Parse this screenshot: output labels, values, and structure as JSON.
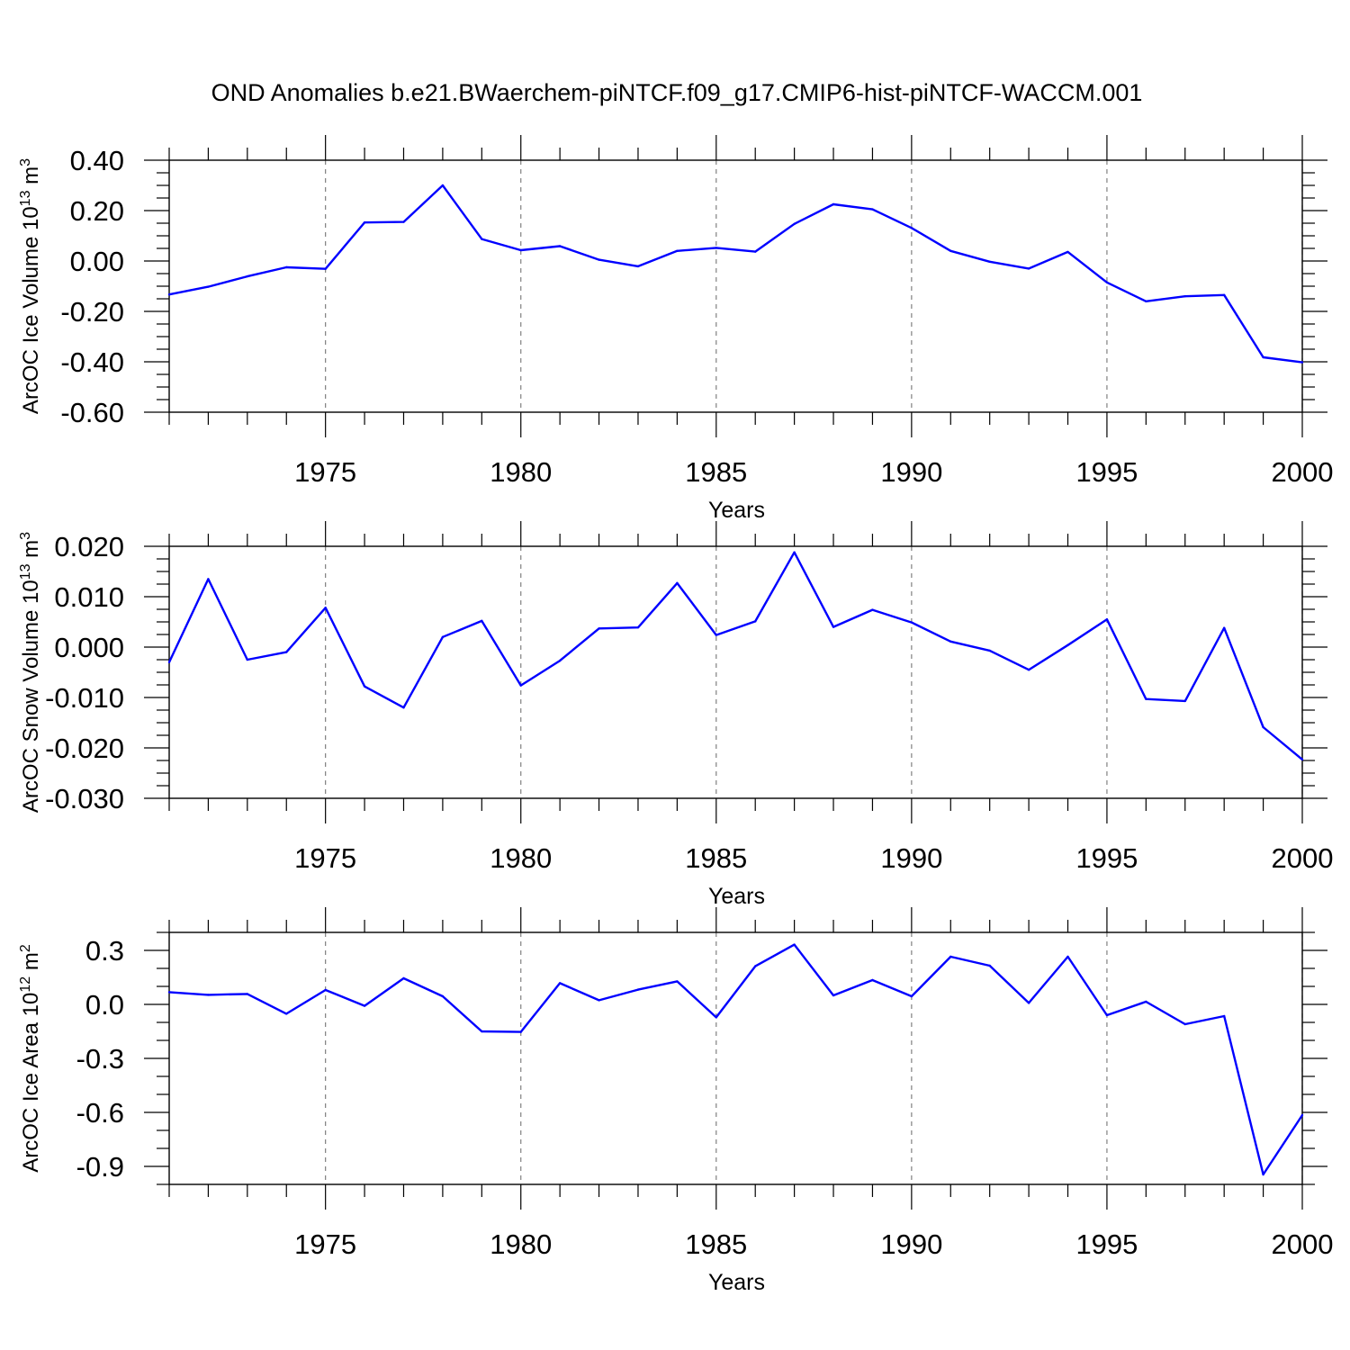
{
  "title": "OND Anomalies b.e21.BWaerchem-piNTCF.f09_g17.CMIP6-hist-piNTCF-WACCM.001",
  "colors": {
    "line": "#0000ff",
    "axis": "#000000",
    "grid": "#808080"
  },
  "chart_data": [
    {
      "type": "line",
      "ylabel": "ArcOC Ice Volume 10",
      "ylabel_exp": "13",
      "ylabel_unit": " m",
      "ylabel_unit_exp": "3",
      "xlabel": "Years",
      "xlim": [
        1971,
        2000
      ],
      "xticks": [
        1975,
        1980,
        1985,
        1990,
        1995,
        2000
      ],
      "ylim": [
        -0.6,
        0.4
      ],
      "yticks": [
        0.4,
        0.2,
        0.0,
        -0.2,
        -0.4,
        -0.6
      ],
      "ytick_labels": [
        "0.40",
        "0.20",
        "0.00",
        "-0.20",
        "-0.40",
        "-0.60"
      ],
      "yminor": 0.05,
      "x": [
        1971,
        1972,
        1973,
        1974,
        1975,
        1976,
        1977,
        1978,
        1979,
        1980,
        1981,
        1982,
        1983,
        1984,
        1985,
        1986,
        1987,
        1988,
        1989,
        1990,
        1991,
        1992,
        1993,
        1994,
        1995,
        1996,
        1997,
        1998,
        1999,
        2000
      ],
      "y": [
        -0.133,
        -0.102,
        -0.061,
        -0.025,
        -0.031,
        0.153,
        0.155,
        0.3,
        0.087,
        0.043,
        0.059,
        0.005,
        -0.021,
        0.04,
        0.052,
        0.037,
        0.147,
        0.225,
        0.205,
        0.131,
        0.04,
        -0.003,
        -0.03,
        0.036,
        -0.085,
        -0.16,
        -0.14,
        -0.135,
        -0.382,
        -0.402
      ]
    },
    {
      "type": "line",
      "ylabel": "ArcOC Snow Volume 10",
      "ylabel_exp": "13",
      "ylabel_unit": " m",
      "ylabel_unit_exp": "3",
      "xlabel": "Years",
      "xlim": [
        1971,
        2000
      ],
      "xticks": [
        1975,
        1980,
        1985,
        1990,
        1995,
        2000
      ],
      "ylim": [
        -0.03,
        0.02
      ],
      "yticks": [
        0.02,
        0.01,
        0.0,
        -0.01,
        -0.02,
        -0.03
      ],
      "ytick_labels": [
        "0.020",
        "0.010",
        "0.000",
        "-0.010",
        "-0.020",
        "-0.030"
      ],
      "yminor": 0.0025,
      "x": [
        1971,
        1972,
        1973,
        1974,
        1975,
        1976,
        1977,
        1978,
        1979,
        1980,
        1981,
        1982,
        1983,
        1984,
        1985,
        1986,
        1987,
        1988,
        1989,
        1990,
        1991,
        1992,
        1993,
        1994,
        1995,
        1996,
        1997,
        1998,
        1999,
        2000
      ],
      "y": [
        -0.003,
        0.0135,
        -0.0025,
        -0.001,
        0.0078,
        -0.0078,
        -0.012,
        0.002,
        0.0052,
        -0.0076,
        -0.0027,
        0.0037,
        0.0039,
        0.0127,
        0.0024,
        0.0051,
        0.0188,
        0.004,
        0.0074,
        0.0049,
        0.0011,
        -0.0007,
        -0.0045,
        0.0004,
        0.0055,
        -0.0103,
        -0.0107,
        0.0038,
        -0.0159,
        -0.0223
      ]
    },
    {
      "type": "line",
      "ylabel": "ArcOC Ice Area 10",
      "ylabel_exp": "12",
      "ylabel_unit": " m",
      "ylabel_unit_exp": "2",
      "xlabel": "Years",
      "xlim": [
        1971,
        2000
      ],
      "xticks": [
        1975,
        1980,
        1985,
        1990,
        1995,
        2000
      ],
      "ylim": [
        -1.0,
        0.4
      ],
      "yticks": [
        0.3,
        0.0,
        -0.3,
        -0.6,
        -0.9
      ],
      "ytick_labels": [
        "0.3",
        "0.0",
        "-0.3",
        "-0.6",
        "-0.9"
      ],
      "yminor": 0.1,
      "x": [
        1971,
        1972,
        1973,
        1974,
        1975,
        1976,
        1977,
        1978,
        1979,
        1980,
        1981,
        1982,
        1983,
        1984,
        1985,
        1986,
        1987,
        1988,
        1989,
        1990,
        1991,
        1992,
        1993,
        1994,
        1995,
        1996,
        1997,
        1998,
        1999,
        2000
      ],
      "y": [
        0.068,
        0.053,
        0.058,
        -0.052,
        0.08,
        -0.008,
        0.145,
        0.045,
        -0.15,
        -0.153,
        0.118,
        0.023,
        0.082,
        0.128,
        -0.072,
        0.212,
        0.332,
        0.05,
        0.135,
        0.045,
        0.265,
        0.215,
        0.008,
        0.265,
        -0.06,
        0.015,
        -0.11,
        -0.065,
        -0.945,
        -0.615
      ]
    }
  ]
}
